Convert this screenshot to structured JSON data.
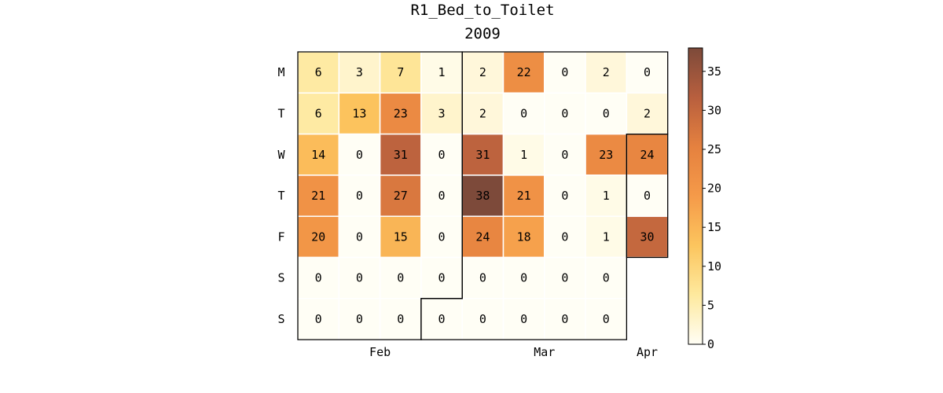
{
  "chart_data": {
    "type": "heatmap",
    "title": "R1_Bed_to_Toilet",
    "subtitle": "2009",
    "row_labels": [
      "M",
      "T",
      "W",
      "T",
      "F",
      "S",
      "S"
    ],
    "month_labels": [
      {
        "label": "Feb",
        "week": 2
      },
      {
        "label": "Mar",
        "week": 6
      },
      {
        "label": "Apr",
        "week": 8.5
      }
    ],
    "weeks": [
      [
        6,
        6,
        14,
        21,
        20,
        0,
        0
      ],
      [
        3,
        13,
        0,
        0,
        0,
        0,
        0
      ],
      [
        7,
        23,
        31,
        27,
        15,
        0,
        0
      ],
      [
        1,
        3,
        0,
        0,
        0,
        0,
        0
      ],
      [
        2,
        2,
        31,
        38,
        24,
        0,
        0
      ],
      [
        22,
        0,
        1,
        21,
        18,
        0,
        0
      ],
      [
        0,
        0,
        0,
        0,
        0,
        0,
        0
      ],
      [
        2,
        0,
        23,
        1,
        1,
        0,
        0
      ],
      [
        0,
        2,
        24,
        0,
        30,
        null,
        null
      ]
    ],
    "colorbar": {
      "min": 0,
      "max": 38,
      "ticks": [
        0,
        5,
        10,
        15,
        20,
        25,
        30,
        35
      ]
    },
    "colorscale": [
      "#fffef5",
      "#fee99e",
      "#fcc55e",
      "#f59a49",
      "#e5813f",
      "#b85f3e",
      "#7d4a3a"
    ]
  }
}
